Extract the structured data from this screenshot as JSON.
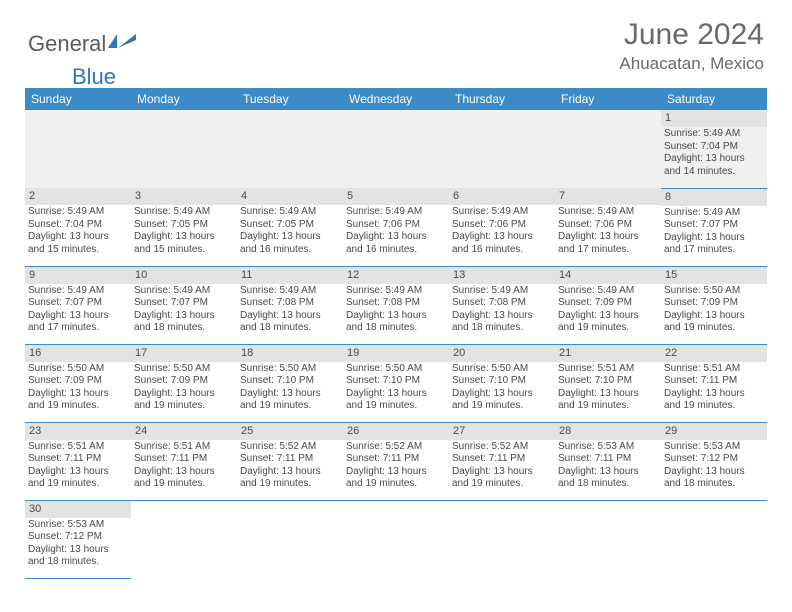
{
  "brand": {
    "part1": "General",
    "part2": "Blue",
    "icon_color": "#2a7ab9",
    "text_gray": "#5a5a5a"
  },
  "title": "June 2024",
  "location": "Ahuacatan, Mexico",
  "colors": {
    "header_bg": "#3b8bc9",
    "header_fg": "#ffffff",
    "daynum_bg": "#e3e3e1",
    "row_border": "#3b8bc9",
    "title_color": "#6a6a6a",
    "cell_text": "#4a4a4a",
    "firstrow_bg": "#f0f0ee"
  },
  "typography": {
    "title_fontsize": 30,
    "location_fontsize": 17,
    "weekday_fontsize": 12,
    "daynum_fontsize": 11,
    "cell_fontsize": 10
  },
  "weekdays": [
    "Sunday",
    "Monday",
    "Tuesday",
    "Wednesday",
    "Thursday",
    "Friday",
    "Saturday"
  ],
  "grid": [
    [
      null,
      null,
      null,
      null,
      null,
      null,
      {
        "day": "1",
        "sunrise": "Sunrise: 5:49 AM",
        "sunset": "Sunset: 7:04 PM",
        "daylight": "Daylight: 13 hours and 14 minutes."
      }
    ],
    [
      {
        "day": "2",
        "sunrise": "Sunrise: 5:49 AM",
        "sunset": "Sunset: 7:04 PM",
        "daylight": "Daylight: 13 hours and 15 minutes."
      },
      {
        "day": "3",
        "sunrise": "Sunrise: 5:49 AM",
        "sunset": "Sunset: 7:05 PM",
        "daylight": "Daylight: 13 hours and 15 minutes."
      },
      {
        "day": "4",
        "sunrise": "Sunrise: 5:49 AM",
        "sunset": "Sunset: 7:05 PM",
        "daylight": "Daylight: 13 hours and 16 minutes."
      },
      {
        "day": "5",
        "sunrise": "Sunrise: 5:49 AM",
        "sunset": "Sunset: 7:06 PM",
        "daylight": "Daylight: 13 hours and 16 minutes."
      },
      {
        "day": "6",
        "sunrise": "Sunrise: 5:49 AM",
        "sunset": "Sunset: 7:06 PM",
        "daylight": "Daylight: 13 hours and 16 minutes."
      },
      {
        "day": "7",
        "sunrise": "Sunrise: 5:49 AM",
        "sunset": "Sunset: 7:06 PM",
        "daylight": "Daylight: 13 hours and 17 minutes."
      },
      {
        "day": "8",
        "sunrise": "Sunrise: 5:49 AM",
        "sunset": "Sunset: 7:07 PM",
        "daylight": "Daylight: 13 hours and 17 minutes."
      }
    ],
    [
      {
        "day": "9",
        "sunrise": "Sunrise: 5:49 AM",
        "sunset": "Sunset: 7:07 PM",
        "daylight": "Daylight: 13 hours and 17 minutes."
      },
      {
        "day": "10",
        "sunrise": "Sunrise: 5:49 AM",
        "sunset": "Sunset: 7:07 PM",
        "daylight": "Daylight: 13 hours and 18 minutes."
      },
      {
        "day": "11",
        "sunrise": "Sunrise: 5:49 AM",
        "sunset": "Sunset: 7:08 PM",
        "daylight": "Daylight: 13 hours and 18 minutes."
      },
      {
        "day": "12",
        "sunrise": "Sunrise: 5:49 AM",
        "sunset": "Sunset: 7:08 PM",
        "daylight": "Daylight: 13 hours and 18 minutes."
      },
      {
        "day": "13",
        "sunrise": "Sunrise: 5:49 AM",
        "sunset": "Sunset: 7:08 PM",
        "daylight": "Daylight: 13 hours and 18 minutes."
      },
      {
        "day": "14",
        "sunrise": "Sunrise: 5:49 AM",
        "sunset": "Sunset: 7:09 PM",
        "daylight": "Daylight: 13 hours and 19 minutes."
      },
      {
        "day": "15",
        "sunrise": "Sunrise: 5:50 AM",
        "sunset": "Sunset: 7:09 PM",
        "daylight": "Daylight: 13 hours and 19 minutes."
      }
    ],
    [
      {
        "day": "16",
        "sunrise": "Sunrise: 5:50 AM",
        "sunset": "Sunset: 7:09 PM",
        "daylight": "Daylight: 13 hours and 19 minutes."
      },
      {
        "day": "17",
        "sunrise": "Sunrise: 5:50 AM",
        "sunset": "Sunset: 7:09 PM",
        "daylight": "Daylight: 13 hours and 19 minutes."
      },
      {
        "day": "18",
        "sunrise": "Sunrise: 5:50 AM",
        "sunset": "Sunset: 7:10 PM",
        "daylight": "Daylight: 13 hours and 19 minutes."
      },
      {
        "day": "19",
        "sunrise": "Sunrise: 5:50 AM",
        "sunset": "Sunset: 7:10 PM",
        "daylight": "Daylight: 13 hours and 19 minutes."
      },
      {
        "day": "20",
        "sunrise": "Sunrise: 5:50 AM",
        "sunset": "Sunset: 7:10 PM",
        "daylight": "Daylight: 13 hours and 19 minutes."
      },
      {
        "day": "21",
        "sunrise": "Sunrise: 5:51 AM",
        "sunset": "Sunset: 7:10 PM",
        "daylight": "Daylight: 13 hours and 19 minutes."
      },
      {
        "day": "22",
        "sunrise": "Sunrise: 5:51 AM",
        "sunset": "Sunset: 7:11 PM",
        "daylight": "Daylight: 13 hours and 19 minutes."
      }
    ],
    [
      {
        "day": "23",
        "sunrise": "Sunrise: 5:51 AM",
        "sunset": "Sunset: 7:11 PM",
        "daylight": "Daylight: 13 hours and 19 minutes."
      },
      {
        "day": "24",
        "sunrise": "Sunrise: 5:51 AM",
        "sunset": "Sunset: 7:11 PM",
        "daylight": "Daylight: 13 hours and 19 minutes."
      },
      {
        "day": "25",
        "sunrise": "Sunrise: 5:52 AM",
        "sunset": "Sunset: 7:11 PM",
        "daylight": "Daylight: 13 hours and 19 minutes."
      },
      {
        "day": "26",
        "sunrise": "Sunrise: 5:52 AM",
        "sunset": "Sunset: 7:11 PM",
        "daylight": "Daylight: 13 hours and 19 minutes."
      },
      {
        "day": "27",
        "sunrise": "Sunrise: 5:52 AM",
        "sunset": "Sunset: 7:11 PM",
        "daylight": "Daylight: 13 hours and 19 minutes."
      },
      {
        "day": "28",
        "sunrise": "Sunrise: 5:53 AM",
        "sunset": "Sunset: 7:11 PM",
        "daylight": "Daylight: 13 hours and 18 minutes."
      },
      {
        "day": "29",
        "sunrise": "Sunrise: 5:53 AM",
        "sunset": "Sunset: 7:12 PM",
        "daylight": "Daylight: 13 hours and 18 minutes."
      }
    ],
    [
      {
        "day": "30",
        "sunrise": "Sunrise: 5:53 AM",
        "sunset": "Sunset: 7:12 PM",
        "daylight": "Daylight: 13 hours and 18 minutes."
      },
      null,
      null,
      null,
      null,
      null,
      null
    ]
  ]
}
